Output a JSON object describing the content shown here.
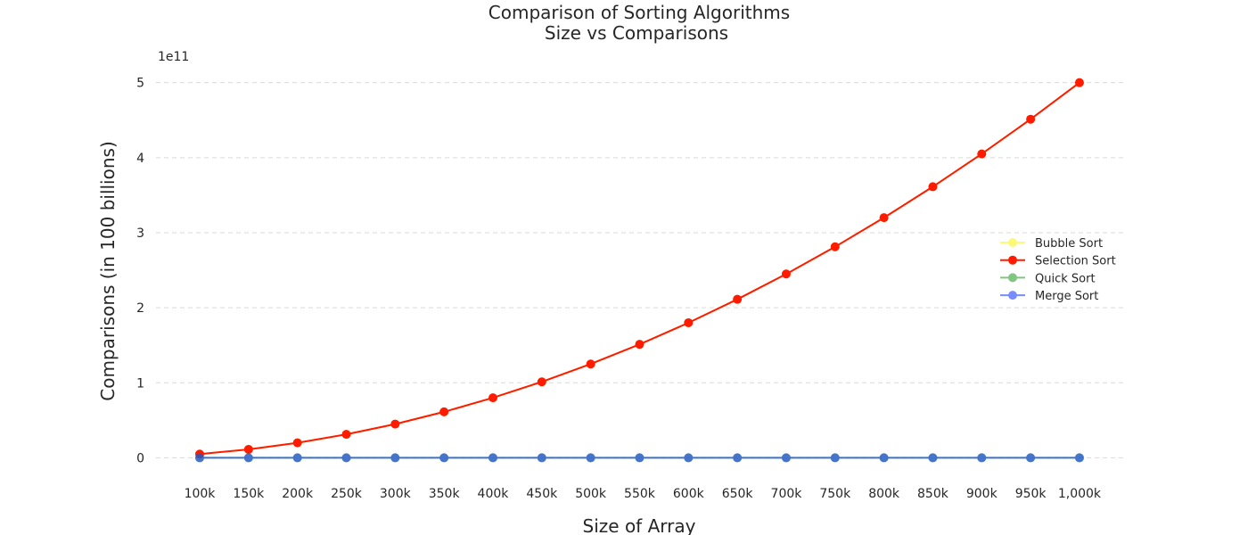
{
  "chart_data": {
    "type": "line",
    "title": [
      "Comparison of Sorting Algorithms",
      "Size vs Comparisons"
    ],
    "xlabel": "Size of Array",
    "ylabel": "Comparisons (in 100 billions)",
    "y_offset_label": "1e11",
    "categories": [
      "100k",
      "150k",
      "200k",
      "250k",
      "300k",
      "350k",
      "400k",
      "450k",
      "500k",
      "550k",
      "600k",
      "650k",
      "700k",
      "750k",
      "800k",
      "850k",
      "900k",
      "950k",
      "1,000k"
    ],
    "x": [
      100000,
      150000,
      200000,
      250000,
      300000,
      350000,
      400000,
      450000,
      500000,
      550000,
      600000,
      650000,
      700000,
      750000,
      800000,
      850000,
      900000,
      950000,
      1000000
    ],
    "ylim": [
      -0.28,
      5.4
    ],
    "yticks": [
      0,
      1,
      2,
      3,
      4,
      5
    ],
    "grid": true,
    "legend_position": "center-right",
    "series": [
      {
        "name": "Bubble Sort",
        "color": "#f7f71e",
        "alpha": 0.6,
        "values": [
          0.0499995,
          0.1124993,
          0.199999,
          0.3124988,
          0.4499985,
          0.6124983,
          0.799998,
          1.0124978,
          1.2499975,
          1.5124973,
          1.799997,
          2.1124968,
          2.4499965,
          2.8124963,
          3.199996,
          3.6124958,
          4.0499955,
          4.5124953,
          4.999995
        ]
      },
      {
        "name": "Selection Sort",
        "color": "#ff1a00",
        "alpha": 1,
        "values": [
          0.0499995,
          0.1124993,
          0.199999,
          0.3124988,
          0.4499985,
          0.6124983,
          0.799998,
          1.0124978,
          1.2499975,
          1.5124973,
          1.799997,
          2.1124968,
          2.4499965,
          2.8124963,
          3.199996,
          3.6124958,
          4.0499955,
          4.5124953,
          4.999995
        ]
      },
      {
        "name": "Quick Sort",
        "color": "#2ca02c",
        "alpha": 0.6,
        "values": [
          2e-05,
          3e-05,
          4e-05,
          5e-05,
          6e-05,
          7e-05,
          8e-05,
          9e-05,
          0.0001,
          0.00011,
          0.00012,
          0.00013,
          0.00014,
          0.00015,
          0.00016,
          0.00017,
          0.00018,
          0.00019,
          0.0002
        ]
      },
      {
        "name": "Merge Sort",
        "color": "#1f3fff",
        "alpha": 0.6,
        "values": [
          1.6e-05,
          2.5e-05,
          3.5e-05,
          4.4e-05,
          5.4e-05,
          6.4e-05,
          7.4e-05,
          8.4e-05,
          9.4e-05,
          0.000104,
          0.000114,
          0.000124,
          0.000134,
          0.000144,
          0.000154,
          0.000164,
          0.000174,
          0.000184,
          0.000194
        ]
      }
    ]
  }
}
